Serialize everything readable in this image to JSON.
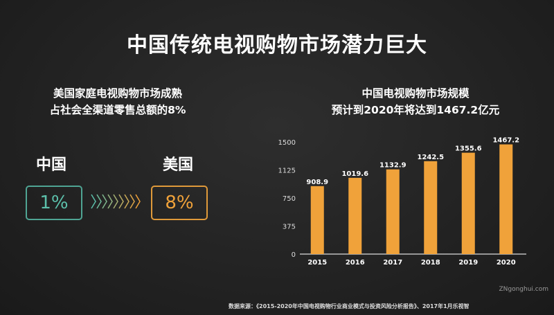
{
  "title": "中国传统电视购物市场潜力巨大",
  "left": {
    "subtitle_lines": [
      "美国家庭电视购物市场成熟",
      "占社会全渠道零售总额的8%"
    ],
    "china_label": "中国",
    "china_value": "1%",
    "usa_label": "美国",
    "usa_value": "8%",
    "china_color": "#5cc0ab",
    "usa_color": "#f0a23a"
  },
  "chart_data": {
    "type": "bar",
    "title_lines": [
      "中国电视购物市场规模",
      "预计到2020年将达到1467.2亿元"
    ],
    "categories": [
      "2015",
      "2016",
      "2017",
      "2018",
      "2019",
      "2020"
    ],
    "values": [
      908.9,
      1019.6,
      1132.9,
      1242.5,
      1355.6,
      1467.2
    ],
    "data_labels": [
      "908.9",
      "1019.6",
      "1132.9",
      "1242.5",
      "1355.6",
      "1467.2"
    ],
    "yticks": [
      0,
      375,
      750,
      1125,
      1500
    ],
    "ylim": [
      0,
      1500
    ],
    "grid": false,
    "bar_color": "#f0a23a"
  },
  "footnote": "数据来源：《2015-2020年中国电视购物行业商业模式与投资风险分析报告》、2017年1月乐视智",
  "watermark": "ZNgonghui.com"
}
